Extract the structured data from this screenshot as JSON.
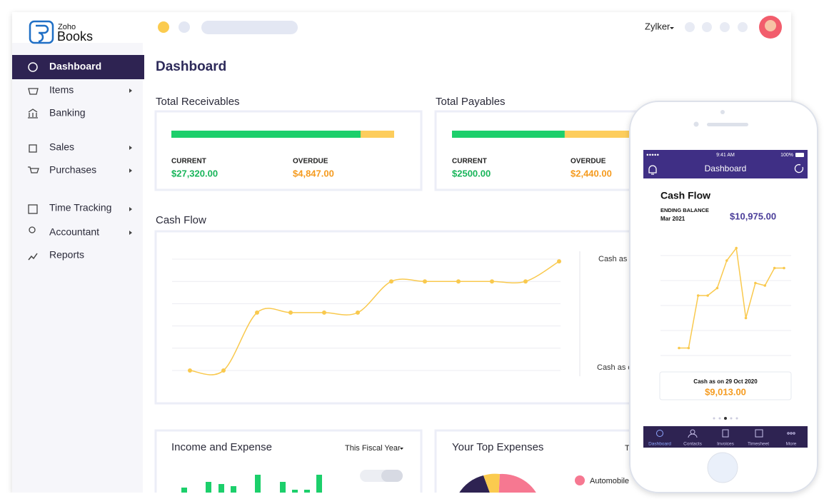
{
  "header": {
    "logo_small": "Zoho",
    "logo": "Books",
    "user": "Zylker"
  },
  "sidebar": {
    "items": [
      "Dashboard",
      "Items",
      "Banking",
      "Sales",
      "Purchases",
      "Time Tracking",
      "Accountant",
      "Reports"
    ]
  },
  "page_title": "Dashboard",
  "receivables": {
    "title": "Total Receivables",
    "current_label": "CURRENT",
    "current": "$27,320.00",
    "current_value": 27320,
    "overdue_label": "OVERDUE",
    "overdue": "$4,847.00",
    "overdue_value": 4847
  },
  "payables": {
    "title": "Total Payables",
    "current_label": "CURRENT",
    "current": "$2500.00",
    "current_value": 2500,
    "overdue_label": "OVERDUE",
    "overdue": "$2,440.00",
    "overdue_value": 2440
  },
  "cash_flow": {
    "title": "Cash Flow",
    "type": "line",
    "color": "#f9c94e",
    "ylim": [
      0,
      50
    ],
    "yticks": [
      0,
      10,
      20,
      30,
      40,
      50
    ],
    "values": [
      0,
      0,
      26,
      26,
      26,
      26,
      40,
      40,
      40,
      40,
      40,
      49
    ],
    "side_labels": [
      "Cash as o",
      "Cash as o"
    ]
  },
  "income_expense": {
    "title": "Income and Expense",
    "period": "This Fiscal Year",
    "type": "bar",
    "color": "#1ccf6b",
    "values": [
      7,
      15,
      12,
      9,
      25,
      15,
      4,
      4,
      25
    ]
  },
  "top_expenses": {
    "title": "Your Top Expenses",
    "period": "T",
    "legend": [
      "Automobile"
    ]
  },
  "phone": {
    "time": "9:41 AM",
    "battery": "100%",
    "header": "Dashboard",
    "card_title": "Cash Flow",
    "ending_label": "ENDING BALANCE",
    "ending_period": "Mar 2021",
    "ending_value": "$10,975.00",
    "chart": {
      "type": "line",
      "color": "#f9c94e",
      "ylim": [
        0,
        60
      ],
      "yticks": [
        10,
        20,
        30,
        40,
        50
      ],
      "values": [
        13,
        13,
        34,
        34,
        37,
        48,
        53,
        25,
        39,
        38,
        45,
        45
      ]
    },
    "cash_label": "Cash as on 29 Oct 2020",
    "cash_value": "$9,013.00",
    "tabs": [
      "Dashboard",
      "Contacts",
      "Invoices",
      "Timesheet",
      "More"
    ]
  }
}
